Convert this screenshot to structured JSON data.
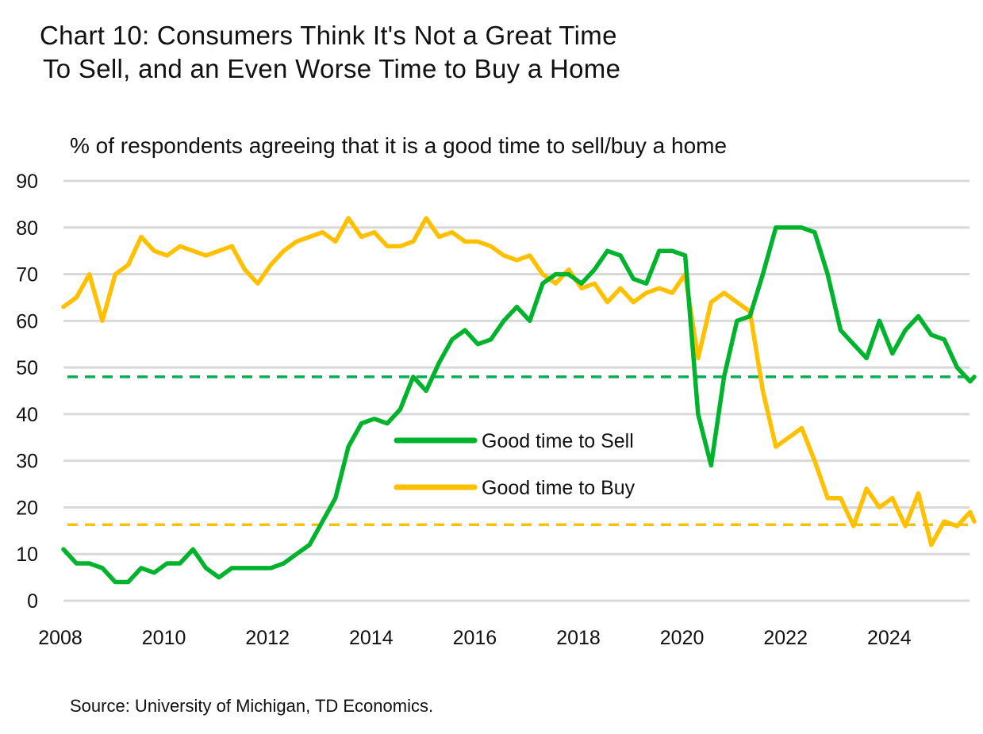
{
  "title_lines": [
    "Chart 10: Consumers Think It's Not a Great Time",
    "To Sell, and an Even Worse Time to Buy a Home"
  ],
  "subtitle": "% of respondents agreeing that it is a good time to sell/buy a home",
  "source": "Source: University of Michigan, TD Economics.",
  "colors": {
    "sell": "#00B32C",
    "buy": "#FFC000",
    "sell_avg": "#00B050",
    "grid": "#D9D9D9"
  },
  "chart_data": {
    "type": "line",
    "title": "Chart 10: Consumers Think It's Not a Great Time To Sell, and an Even Worse Time to Buy a Home",
    "ylabel": "% of respondents agreeing that it is a good time to sell/buy a home",
    "xlabel": "",
    "ylim": [
      0,
      90
    ],
    "yticks": [
      "0",
      "10",
      "20",
      "30",
      "40",
      "50",
      "60",
      "70",
      "80",
      "90"
    ],
    "xticks": [
      "2008",
      "2010",
      "2012",
      "2014",
      "2016",
      "2018",
      "2020",
      "2022",
      "2024"
    ],
    "grid": true,
    "legend": "center",
    "x": [
      2008,
      2008.25,
      2008.5,
      2008.75,
      2009,
      2009.25,
      2009.5,
      2009.75,
      2010,
      2010.25,
      2010.5,
      2010.75,
      2011,
      2011.25,
      2011.5,
      2011.75,
      2012,
      2012.25,
      2012.5,
      2012.75,
      2013,
      2013.25,
      2013.5,
      2013.75,
      2014,
      2014.25,
      2014.5,
      2014.75,
      2015,
      2015.25,
      2015.5,
      2015.75,
      2016,
      2016.25,
      2016.5,
      2016.75,
      2017,
      2017.25,
      2017.5,
      2017.75,
      2018,
      2018.25,
      2018.5,
      2018.75,
      2019,
      2019.25,
      2019.5,
      2019.75,
      2020,
      2020.25,
      2020.5,
      2020.75,
      2021,
      2021.25,
      2021.5,
      2021.75,
      2022,
      2022.25,
      2022.5,
      2022.75,
      2023,
      2023.25,
      2023.5,
      2023.75,
      2024,
      2024.25,
      2024.5,
      2024.75,
      2025,
      2025.25,
      2025.5,
      2025.58
    ],
    "series": [
      {
        "name": "Good time to Sell",
        "values": [
          11,
          8,
          8,
          7,
          4,
          4,
          7,
          6,
          8,
          8,
          11,
          7,
          5,
          7,
          7,
          7,
          7,
          8,
          10,
          12,
          17,
          22,
          33,
          38,
          39,
          38,
          41,
          48,
          45,
          51,
          56,
          58,
          55,
          56,
          60,
          63,
          60,
          68,
          70,
          70,
          68,
          71,
          75,
          74,
          69,
          68,
          75,
          75,
          74,
          40,
          29,
          48,
          60,
          61,
          70,
          80,
          80,
          80,
          79,
          70,
          58,
          55,
          52,
          60,
          53,
          58,
          61,
          57,
          56,
          50,
          47,
          48
        ]
      },
      {
        "name": "Good time to Buy",
        "values": [
          63,
          65,
          70,
          60,
          70,
          72,
          78,
          75,
          74,
          76,
          75,
          74,
          75,
          76,
          71,
          68,
          72,
          75,
          77,
          78,
          79,
          77,
          82,
          78,
          79,
          76,
          76,
          77,
          82,
          78,
          79,
          77,
          77,
          76,
          74,
          73,
          74,
          70,
          68,
          71,
          67,
          68,
          64,
          67,
          64,
          66,
          67,
          66,
          70,
          52,
          64,
          66,
          64,
          62,
          45,
          33,
          35,
          37,
          30,
          22,
          22,
          16,
          24,
          20,
          22,
          16,
          23,
          12,
          17,
          16,
          19,
          17
        ]
      }
    ],
    "reference_lines": [
      {
        "series": "Good time to Sell",
        "value": 48,
        "style": "dashed"
      },
      {
        "series": "Good time to Buy",
        "value": 16.3,
        "style": "dashed"
      }
    ]
  }
}
